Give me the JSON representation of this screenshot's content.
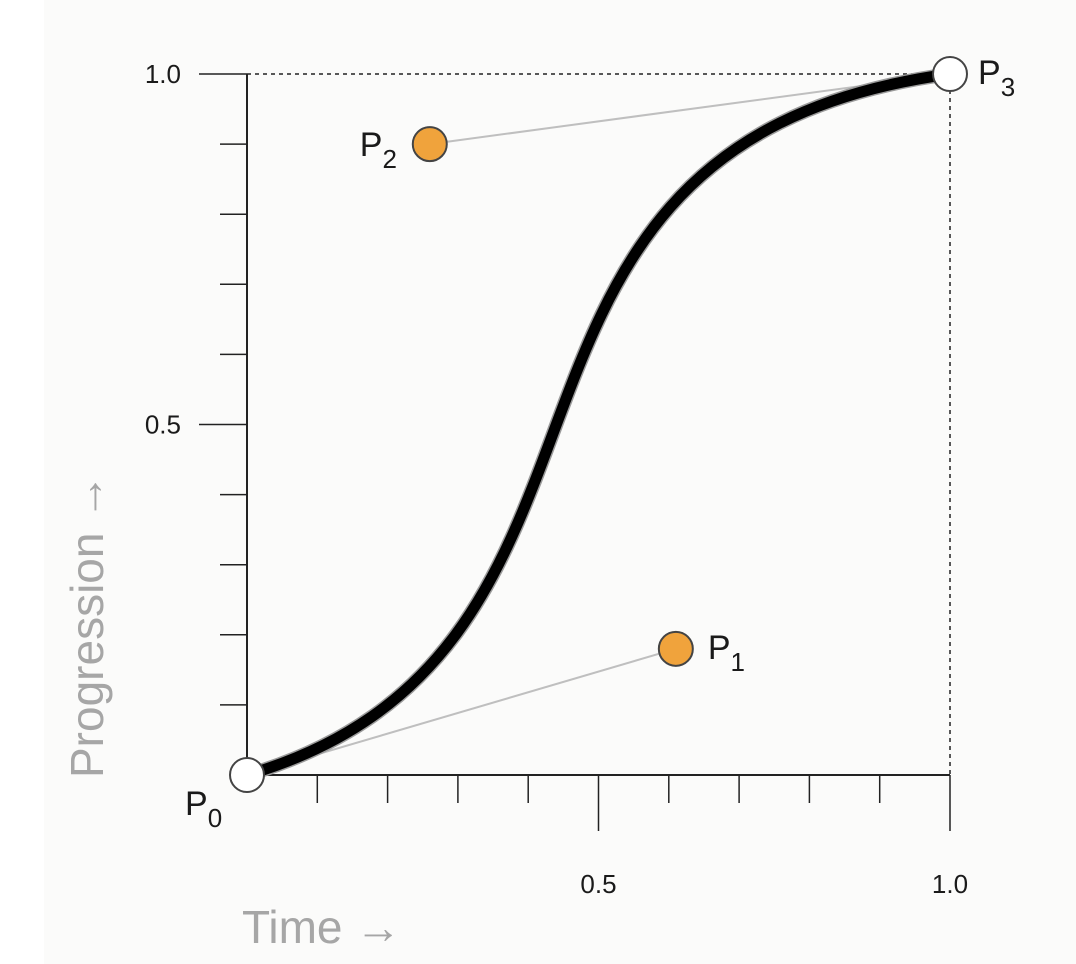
{
  "chart_data": {
    "type": "line",
    "xlabel": "Time",
    "ylabel": "Progression",
    "xlim": [
      0,
      1
    ],
    "ylim": [
      0,
      1
    ],
    "x_ticks": [
      0.1,
      0.2,
      0.3,
      0.4,
      0.5,
      0.6,
      0.7,
      0.8,
      0.9,
      1.0
    ],
    "y_ticks": [
      0.1,
      0.2,
      0.3,
      0.4,
      0.5,
      0.6,
      0.7,
      0.8,
      0.9,
      1.0
    ],
    "x_tick_labels": [
      {
        "value": 0.5,
        "text": "0.5"
      },
      {
        "value": 1.0,
        "text": "1.0"
      }
    ],
    "y_tick_labels": [
      {
        "value": 0.5,
        "text": "0.5"
      },
      {
        "value": 1.0,
        "text": "1.0"
      }
    ],
    "arrow_glyph": "→",
    "points": [
      {
        "id": "p0",
        "label": "P",
        "sub": "0",
        "x": 0.0,
        "y": 0.0,
        "color": "#ffffff"
      },
      {
        "id": "p1",
        "label": "P",
        "sub": "1",
        "x": 0.61,
        "y": 0.18,
        "color": "#f0a33c"
      },
      {
        "id": "p2",
        "label": "P",
        "sub": "2",
        "x": 0.26,
        "y": 0.9,
        "color": "#f0a33c"
      },
      {
        "id": "p3",
        "label": "P",
        "sub": "3",
        "x": 1.0,
        "y": 1.0,
        "color": "#ffffff"
      }
    ],
    "curve_color": "#000000",
    "handle_color": "#bfbfbf",
    "grid": false,
    "dashed_bounds": true
  }
}
